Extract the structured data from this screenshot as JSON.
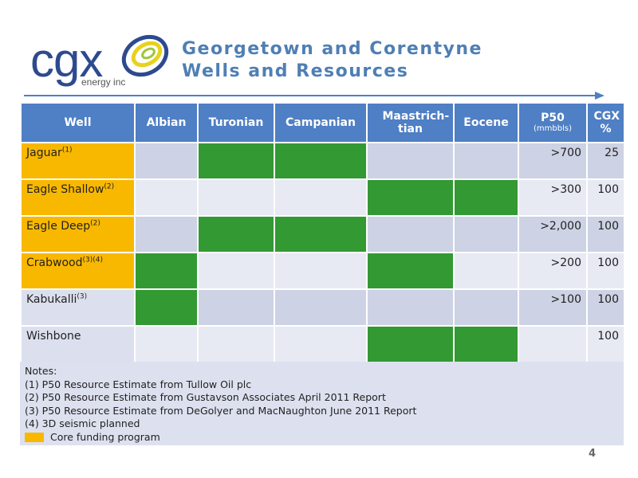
{
  "logo": {
    "wordmark": "cgx",
    "subtext": "energy inc"
  },
  "title": {
    "line1": "Georgetown and Corentyne",
    "line2": "Wells and Resources"
  },
  "colors": {
    "header": "#4f7fc4",
    "core_funding": "#f9b800",
    "target": "#339933",
    "title": "#4f7fb4"
  },
  "table": {
    "headers": {
      "well": "Well",
      "albian": "Albian",
      "turonian": "Turonian",
      "campanian": "Campanian",
      "maastrichtian": "Maastrich-tian",
      "eocene": "Eocene",
      "p50": "P50",
      "p50_unit": "(mmbbls)",
      "cgx": "CGX %"
    },
    "rows": [
      {
        "name": "Jaguar",
        "note": "(1)",
        "core": true,
        "targets": [
          false,
          true,
          true,
          false,
          false
        ],
        "p50": ">700",
        "cgx": "25"
      },
      {
        "name": "Eagle Shallow",
        "note": "(2)",
        "core": true,
        "targets": [
          false,
          false,
          false,
          true,
          true
        ],
        "p50": ">300",
        "cgx": "100"
      },
      {
        "name": "Eagle Deep",
        "note": "(2)",
        "core": true,
        "targets": [
          false,
          true,
          true,
          false,
          false
        ],
        "p50": ">2,000",
        "cgx": "100"
      },
      {
        "name": "Crabwood",
        "note": "(3)(4)",
        "core": true,
        "targets": [
          true,
          false,
          false,
          true,
          false
        ],
        "p50": ">200",
        "cgx": "100"
      },
      {
        "name": "Kabukalli",
        "note": "(3)",
        "core": false,
        "targets": [
          true,
          false,
          false,
          false,
          false
        ],
        "p50": ">100",
        "cgx": "100"
      },
      {
        "name": "Wishbone",
        "note": "",
        "core": false,
        "targets": [
          false,
          false,
          false,
          true,
          true
        ],
        "p50": "",
        "cgx": "100"
      }
    ]
  },
  "notes": {
    "heading": "Notes:",
    "items": [
      "(1)  P50 Resource Estimate from Tullow Oil plc",
      "(2)  P50 Resource Estimate from Gustavson Associates April 2011 Report",
      "(3)  P50 Resource Estimate from DeGolyer and MacNaughton June 2011 Report",
      "(4)  3D seismic planned"
    ],
    "legend": "Core funding program"
  },
  "page_number": "4"
}
